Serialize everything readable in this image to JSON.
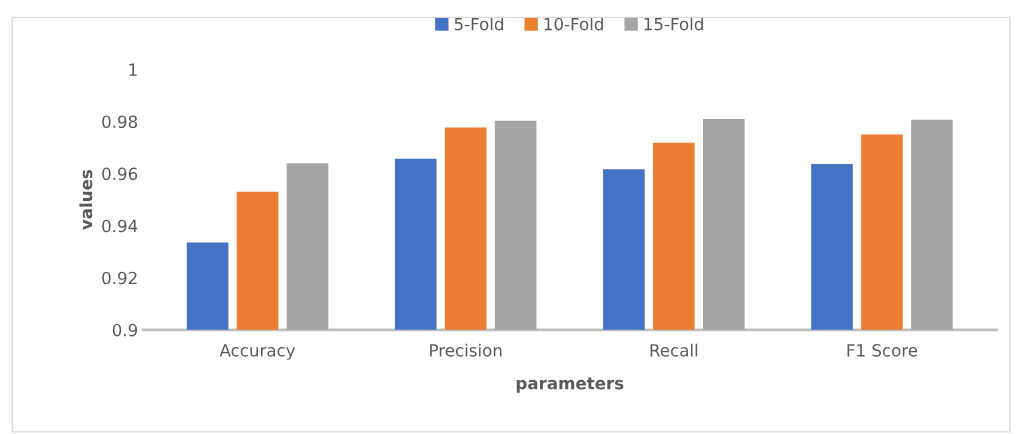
{
  "chart_data": {
    "type": "bar",
    "xlabel": "parameters",
    "ylabel": "values",
    "categories": [
      "Accuracy",
      "Precision",
      "Recall",
      "F1 Score"
    ],
    "series": [
      {
        "name": "5-Fold",
        "color": "#4472c4",
        "values": [
          0.9335,
          0.9657,
          0.9617,
          0.9637
        ]
      },
      {
        "name": "10-Fold",
        "color": "#ed7d31",
        "values": [
          0.953,
          0.9777,
          0.9718,
          0.975
        ]
      },
      {
        "name": "15-Fold",
        "color": "#a5a5a5",
        "values": [
          0.964,
          0.9803,
          0.981,
          0.9807
        ]
      }
    ],
    "ylim": [
      0.9,
      1
    ],
    "yticks": [
      0.9,
      0.92,
      0.94,
      0.96,
      0.98,
      1
    ],
    "grid": false,
    "legend": "top"
  }
}
